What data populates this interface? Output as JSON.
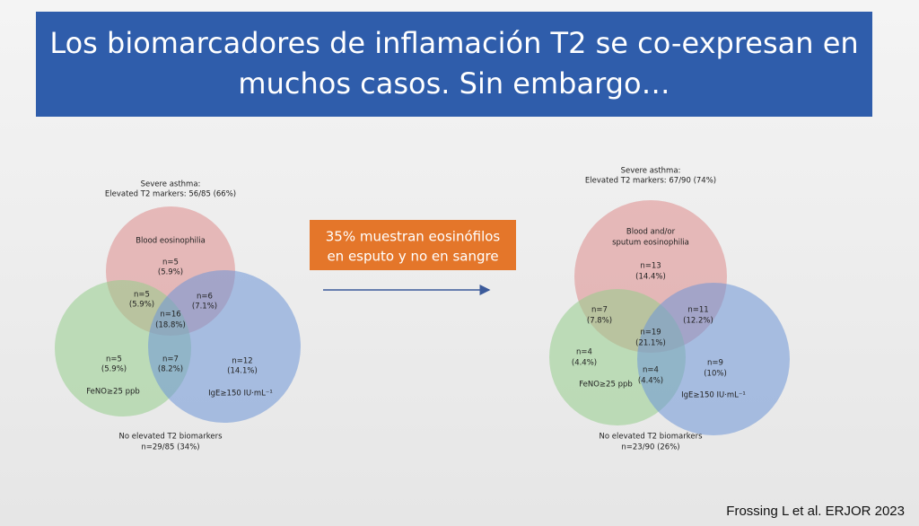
{
  "title": {
    "lines": [
      "Los biomarcadores de inflamación T2 se co-expresan en",
      "muchos casos. Sin embargo…"
    ]
  },
  "callout": {
    "lines": [
      "35% muestran eosinófilos",
      "en esputo y no en sangre"
    ]
  },
  "venns": [
    {
      "header": [
        "Severe asthma:",
        "Elevated T2 markers: 56/85 (66%)"
      ],
      "set_labels": [
        "Blood eosinophilia",
        "FeNO≥25 ppb",
        "IgE≥150 IU·mL⁻¹"
      ],
      "regions": [
        [
          "n=5",
          "(5.9%)"
        ],
        [
          "n=5",
          "(5.9%)"
        ],
        [
          "n=6",
          "(7.1%)"
        ],
        [
          "n=16",
          "(18.8%)"
        ],
        [
          "n=5",
          "(5.9%)"
        ],
        [
          "n=7",
          "(8.2%)"
        ],
        [
          "n=12",
          "(14.1%)"
        ]
      ],
      "footer": [
        "No elevated T2 biomarkers",
        "n=29/85 (34%)"
      ]
    },
    {
      "header": [
        "Severe asthma:",
        "Elevated T2 markers: 67/90 (74%)"
      ],
      "set_labels": [
        "Blood and/or",
        "sputum eosinophilia",
        "FeNO≥25 ppb",
        "IgE≥150 IU·mL⁻¹"
      ],
      "regions": [
        [
          "n=13",
          "(14.4%)"
        ],
        [
          "n=7",
          "(7.8%)"
        ],
        [
          "n=11",
          "(12.2%)"
        ],
        [
          "n=19",
          "(21.1%)"
        ],
        [
          "n=4",
          "(4.4%)"
        ],
        [
          "n=4",
          "(4.4%)"
        ],
        [
          "n=9",
          "(10%)"
        ]
      ],
      "footer": [
        "No elevated T2 biomarkers",
        "n=23/90 (26%)"
      ]
    }
  ],
  "citation": "Frossing L et al. ERJOR 2023"
}
